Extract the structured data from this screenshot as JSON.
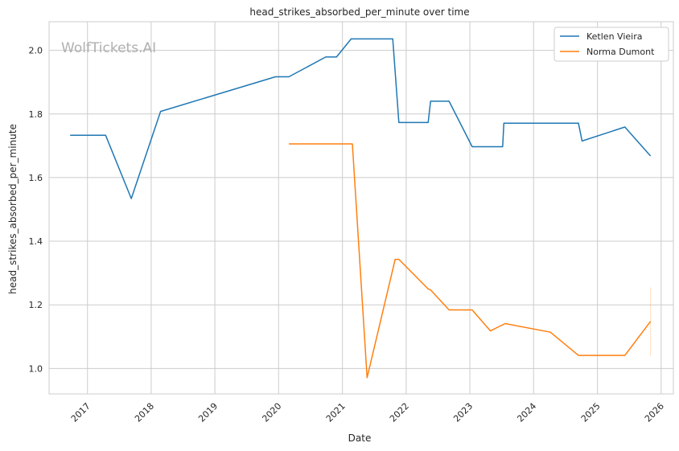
{
  "chart_data": {
    "type": "line",
    "title": "head_strikes_absorbed_per_minute over time",
    "xlabel": "Date",
    "ylabel": "head_strikes_absorbed_per_minute",
    "watermark": "WolfTickets.AI",
    "x_ticks": [
      "2017",
      "2018",
      "2019",
      "2020",
      "2021",
      "2022",
      "2023",
      "2024",
      "2025",
      "2026"
    ],
    "y_ticks": [
      "1.0",
      "1.2",
      "1.4",
      "1.6",
      "1.8",
      "2.0"
    ],
    "xlim": [
      "2016-05-26",
      "2026-03-12"
    ],
    "ylim": [
      0.92,
      2.09
    ],
    "grid": true,
    "legend_position": "top-right",
    "series": [
      {
        "name": "Ketlen Vieira",
        "color": "#1f77b4",
        "points": [
          [
            "2016-09-24",
            1.733
          ],
          [
            "2017-04-15",
            1.733
          ],
          [
            "2017-09-09",
            1.534
          ],
          [
            "2018-02-24",
            1.808
          ],
          [
            "2019-12-14",
            1.917
          ],
          [
            "2020-02-29",
            1.917
          ],
          [
            "2020-09-27",
            1.979
          ],
          [
            "2020-11-28",
            1.979
          ],
          [
            "2021-02-20",
            2.036
          ],
          [
            "2021-10-16",
            2.036
          ],
          [
            "2021-11-20",
            1.773
          ],
          [
            "2022-05-07",
            1.773
          ],
          [
            "2022-05-21",
            1.84
          ],
          [
            "2022-09-04",
            1.84
          ],
          [
            "2023-01-14",
            1.697
          ],
          [
            "2023-07-08",
            1.697
          ],
          [
            "2023-07-15",
            1.771
          ],
          [
            "2024-09-14",
            1.771
          ],
          [
            "2024-10-05",
            1.715
          ],
          [
            "2025-06-07",
            1.759
          ],
          [
            "2025-11-01",
            1.668
          ]
        ]
      },
      {
        "name": "Norma Dumont",
        "color": "#ff7f0e",
        "points": [
          [
            "2020-02-29",
            1.706
          ],
          [
            "2021-02-27",
            1.706
          ],
          [
            "2021-05-22",
            0.971
          ],
          [
            "2021-10-30",
            1.343
          ],
          [
            "2021-11-20",
            1.343
          ],
          [
            "2022-05-07",
            1.25
          ],
          [
            "2022-05-21",
            1.247
          ],
          [
            "2022-09-04",
            1.184
          ],
          [
            "2023-01-14",
            1.184
          ],
          [
            "2023-04-29",
            1.118
          ],
          [
            "2023-07-22",
            1.141
          ],
          [
            "2024-04-06",
            1.114
          ],
          [
            "2024-09-14",
            1.041
          ],
          [
            "2025-06-07",
            1.041
          ],
          [
            "2025-11-01",
            1.148
          ]
        ],
        "error_bar": {
          "date": "2025-11-01",
          "low": 1.04,
          "high": 1.255
        }
      }
    ]
  }
}
